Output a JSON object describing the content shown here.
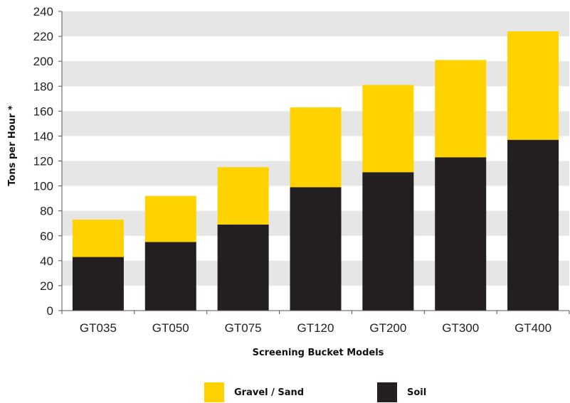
{
  "chart_data": {
    "type": "bar",
    "stacked": true,
    "categories": [
      "GT035",
      "GT050",
      "GT075",
      "GT120",
      "GT200",
      "GT300",
      "GT400"
    ],
    "series": [
      {
        "name": "Soil",
        "values": [
          43,
          55,
          69,
          99,
          111,
          123,
          137
        ],
        "color": "#231f20"
      },
      {
        "name": "Gravel / Sand",
        "values": [
          30,
          37,
          46,
          64,
          70,
          78,
          87
        ],
        "color": "#ffd200"
      }
    ],
    "xlabel": "Screening Bucket Models",
    "ylabel": "Tons per Hour *",
    "ylim": [
      0,
      240
    ],
    "yticks": [
      0,
      20,
      40,
      60,
      80,
      100,
      120,
      140,
      160,
      180,
      200,
      220,
      240
    ],
    "grid": "alternating horizontal bands",
    "band_color": "#e6e6e6",
    "legend_position": "bottom-center"
  },
  "legend": {
    "gravel_label": "Gravel / Sand",
    "soil_label": "Soil"
  }
}
